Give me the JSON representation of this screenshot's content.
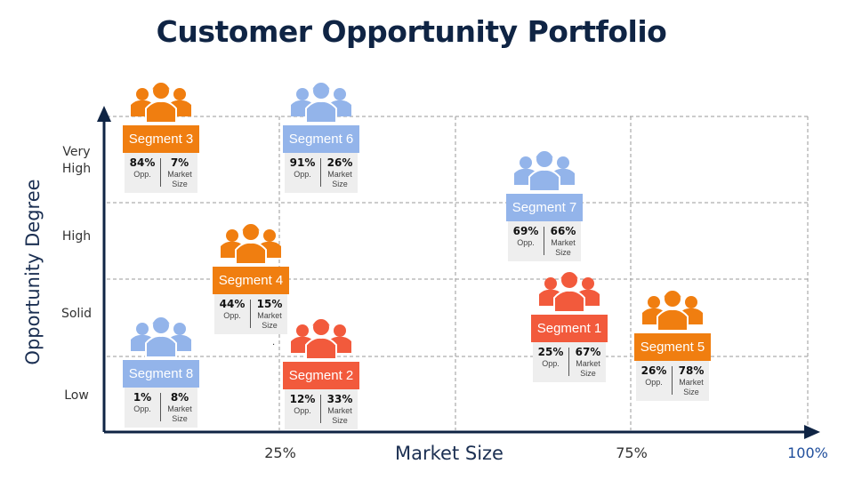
{
  "title": "Customer Opportunity Portfolio",
  "axes": {
    "y_label": "Opportunity Degree",
    "x_label": "Market Size",
    "y_ticks": [
      "Very\nHigh",
      "High",
      "Solid",
      "Low"
    ],
    "x_ticks": [
      "25%",
      "75%",
      "100%"
    ]
  },
  "colors": {
    "orange": "#f07e10",
    "blue": "#93b4ea",
    "red": "#f25a3c",
    "axis": "#0f2444",
    "title": "#0f2444"
  },
  "segments": [
    {
      "name": "Segment 3",
      "opp": "84%",
      "size": "7%",
      "color": "orange",
      "icon": "people-group-icon"
    },
    {
      "name": "Segment 6",
      "opp": "91%",
      "size": "26%",
      "color": "blue",
      "icon": "people-group-icon"
    },
    {
      "name": "Segment 7",
      "opp": "69%",
      "size": "66%",
      "color": "blue",
      "icon": "people-group-icon"
    },
    {
      "name": "Segment 4",
      "opp": "44%",
      "size": "15%",
      "color": "orange",
      "icon": "people-group-icon"
    },
    {
      "name": "Segment 1",
      "opp": "25%",
      "size": "67%",
      "color": "red",
      "icon": "people-group-icon"
    },
    {
      "name": "Segment 5",
      "opp": "26%",
      "size": "78%",
      "color": "orange",
      "icon": "people-group-icon"
    },
    {
      "name": "Segment 8",
      "opp": "1%",
      "size": "8%",
      "color": "blue",
      "icon": "people-group-icon"
    },
    {
      "name": "Segment 2",
      "opp": "12%",
      "size": "33%",
      "color": "red",
      "icon": "people-group-icon"
    }
  ],
  "captions": {
    "opp": "Opp.",
    "size_line1": "Market",
    "size_line2": "Size"
  },
  "stray_mark": "."
}
